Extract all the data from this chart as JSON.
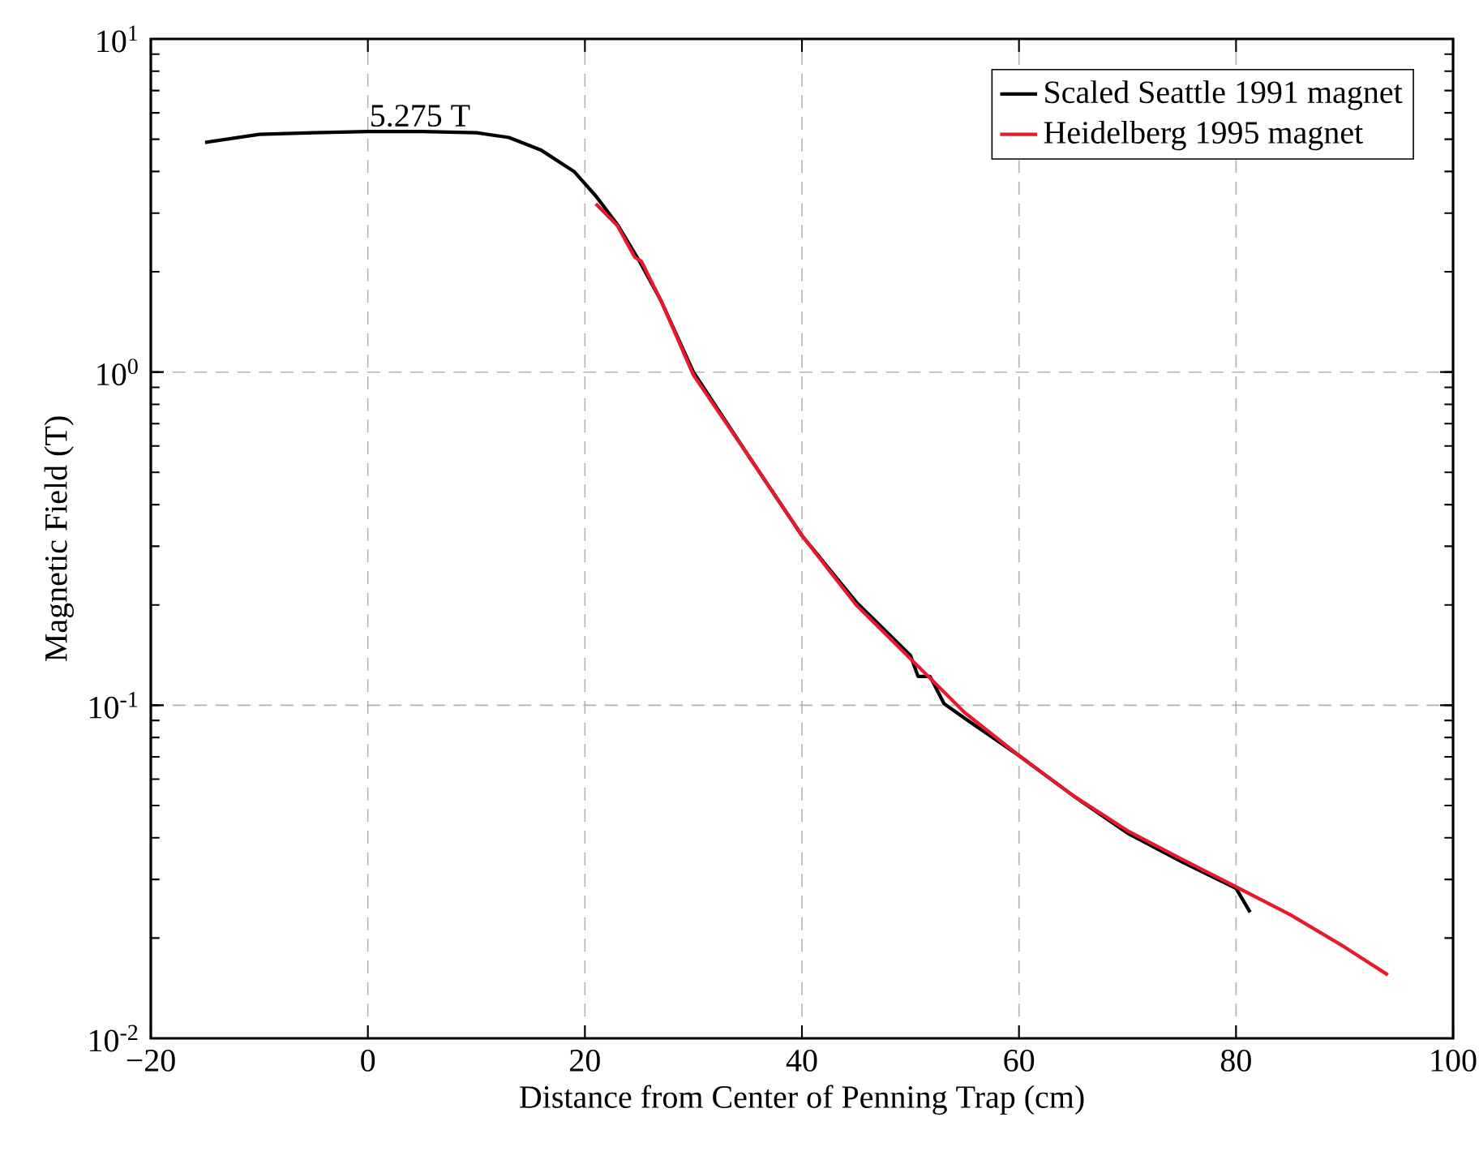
{
  "chart_data": {
    "type": "line",
    "xlabel": "Distance from Center of Penning Trap (cm)",
    "ylabel": "Magnetic Field (T)",
    "xlim": [
      -20,
      100
    ],
    "ylim": [
      0.01,
      10
    ],
    "log": "y",
    "grid": true,
    "legend": "top right",
    "line_style": "solid",
    "marker": "none",
    "xticks": [
      {
        "value": -20,
        "label": "−20"
      },
      0,
      20,
      40,
      60,
      80,
      100
    ],
    "yticks": [
      {
        "value": 0.01,
        "label": "10$^{-2}$"
      },
      {
        "value": 0.1,
        "label": "10$^{-1}$"
      },
      {
        "value": 1,
        "label": "10$^{0}$"
      },
      {
        "value": 10,
        "label": "10$^{1}$"
      }
    ],
    "annotations": [
      {
        "text": "5.275 T",
        "x": 4.8,
        "y": 5.275
      }
    ],
    "series": [
      {
        "name": "Scaled Seattle 1991 magnet",
        "color": "#000000",
        "x": [
          -15,
          -10,
          -5,
          0,
          5,
          10,
          13,
          16,
          19,
          21,
          23,
          25,
          27,
          30,
          35,
          40,
          45,
          50,
          50.7,
          51.8,
          53.1,
          55,
          60,
          65,
          70,
          75,
          80,
          81.3
        ],
        "values": [
          4.89,
          5.17,
          5.23,
          5.275,
          5.275,
          5.23,
          5.06,
          4.63,
          4.0,
          3.38,
          2.77,
          2.16,
          1.64,
          1.0,
          0.565,
          0.323,
          0.204,
          0.141,
          0.122,
          0.122,
          0.101,
          0.0914,
          0.0706,
          0.0535,
          0.0413,
          0.0339,
          0.0282,
          0.0239
        ]
      },
      {
        "name": "Heidelberg 1995 magnet",
        "color": "#e8192c",
        "x": [
          21,
          23,
          24.6,
          25.2,
          27,
          30,
          35,
          40,
          45,
          50,
          55,
          60,
          65,
          70,
          75,
          80,
          85,
          90,
          94
        ],
        "values": [
          3.2,
          2.75,
          2.21,
          2.15,
          1.64,
          0.98,
          0.565,
          0.323,
          0.2,
          0.138,
          0.095,
          0.0706,
          0.0535,
          0.042,
          0.0345,
          0.0285,
          0.0235,
          0.0188,
          0.0155
        ]
      }
    ]
  }
}
